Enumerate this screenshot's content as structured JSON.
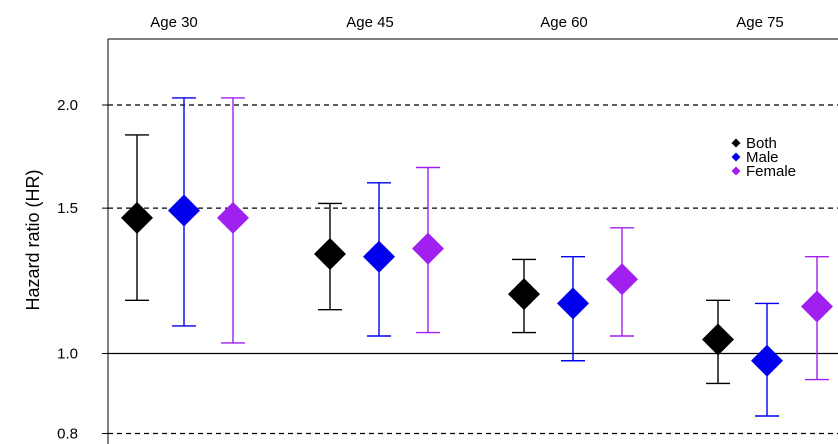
{
  "chart_data": {
    "type": "scatter",
    "subtype": "point-estimate-with-confidence-intervals",
    "ylabel": "Hazard ratio (HR)",
    "y_scale": "log",
    "ylim": [
      0.78,
      2.6
    ],
    "y_ticks": [
      {
        "value": 0.8,
        "label": "0.8"
      },
      {
        "value": 1.0,
        "label": "1.0"
      },
      {
        "value": 1.5,
        "label": "1.5"
      },
      {
        "value": 2.0,
        "label": "2.0"
      }
    ],
    "reference_lines": [
      {
        "value": 0.8,
        "style": "dashed"
      },
      {
        "value": 1.0,
        "style": "solid"
      },
      {
        "value": 1.5,
        "style": "dashed"
      },
      {
        "value": 2.0,
        "style": "dashed"
      }
    ],
    "categories": [
      "Age 30",
      "Age 45",
      "Age 60",
      "Age 75"
    ],
    "legend_position": "right",
    "series": [
      {
        "name": "Both",
        "color": "#000000",
        "values": [
          1.46,
          1.32,
          1.18,
          1.04
        ],
        "lower": [
          1.16,
          1.13,
          1.06,
          0.92
        ],
        "upper": [
          1.84,
          1.52,
          1.3,
          1.16
        ]
      },
      {
        "name": "Male",
        "color": "#0000ee",
        "values": [
          1.49,
          1.31,
          1.15,
          0.98
        ],
        "lower": [
          1.08,
          1.05,
          0.98,
          0.84
        ],
        "upper": [
          2.04,
          1.61,
          1.31,
          1.15
        ]
      },
      {
        "name": "Female",
        "color": "#a020f0",
        "values": [
          1.46,
          1.34,
          1.23,
          1.14
        ],
        "lower": [
          1.03,
          1.06,
          1.05,
          0.93
        ],
        "upper": [
          2.04,
          1.68,
          1.42,
          1.31
        ]
      }
    ]
  }
}
